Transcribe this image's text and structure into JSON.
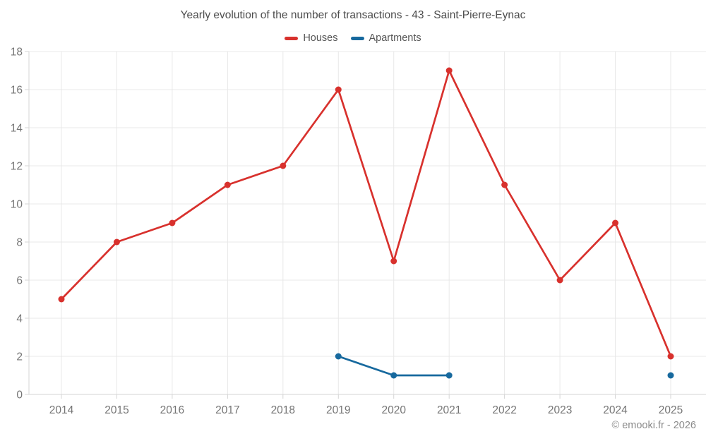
{
  "title": "Yearly evolution of the number of transactions - 43 - Saint-Pierre-Eynac",
  "copyright": "© emooki.fr - 2026",
  "chart_data": {
    "type": "line",
    "title": "Yearly evolution of the number of transactions - 43 - Saint-Pierre-Eynac",
    "categories": [
      "2014",
      "2015",
      "2016",
      "2017",
      "2018",
      "2019",
      "2020",
      "2021",
      "2022",
      "2023",
      "2024",
      "2025"
    ],
    "series": [
      {
        "name": "Houses",
        "color": "#d8312d",
        "values": [
          5,
          8,
          9,
          11,
          12,
          16,
          7,
          17,
          11,
          6,
          9,
          2
        ]
      },
      {
        "name": "Apartments",
        "color": "#17699e",
        "values": [
          null,
          null,
          null,
          null,
          null,
          2,
          1,
          1,
          null,
          null,
          null,
          1
        ]
      }
    ],
    "ylim": [
      0,
      18
    ],
    "ytick_step": 2,
    "grid": true,
    "legend_position": "top",
    "xlabel": "",
    "ylabel": ""
  },
  "colors": {
    "grid": "#e8e8e8",
    "axis": "#d5d5d5",
    "tick_text": "#757575",
    "title_text": "#4d4d4d",
    "legend_text": "#565656",
    "copyright_text": "#8a8a8a",
    "background": "#ffffff"
  }
}
